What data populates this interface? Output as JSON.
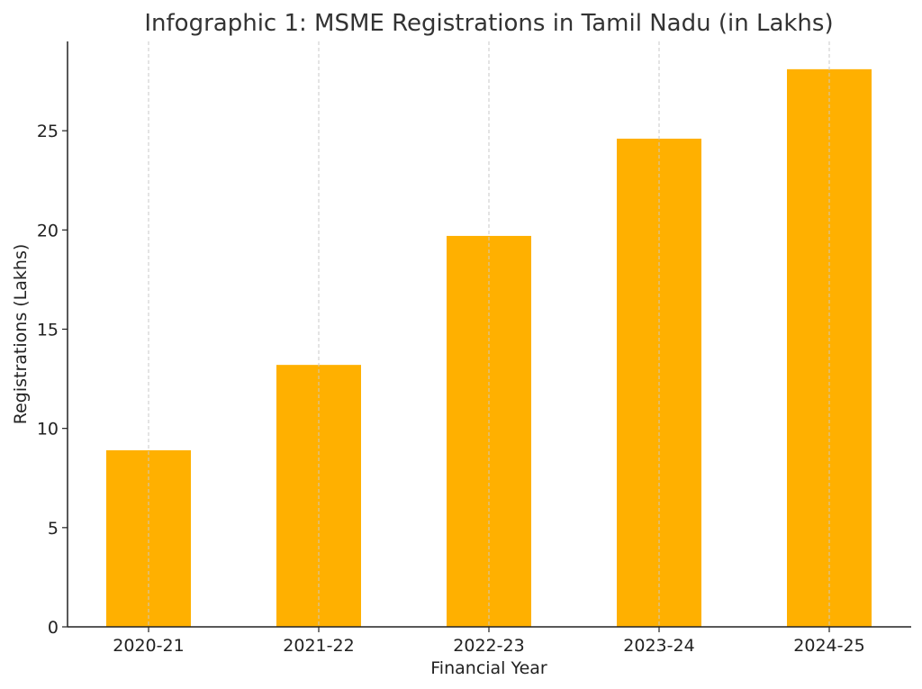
{
  "chart_data": {
    "type": "bar",
    "title": "Infographic 1: MSME Registrations in Tamil Nadu (in Lakhs)",
    "xlabel": "Financial Year",
    "ylabel": "Registrations (Lakhs)",
    "categories": [
      "2020-21",
      "2021-22",
      "2022-23",
      "2023-24",
      "2024-25"
    ],
    "values": [
      8.9,
      13.2,
      19.7,
      24.6,
      28.1
    ],
    "ylim": [
      0,
      29.5
    ],
    "yticks": [
      0,
      5,
      10,
      15,
      20,
      25
    ],
    "grid": "vertical, dashed",
    "bar_color": "#FFB000",
    "grid_color": "#c8c8c8",
    "axis_color": "#222222"
  }
}
